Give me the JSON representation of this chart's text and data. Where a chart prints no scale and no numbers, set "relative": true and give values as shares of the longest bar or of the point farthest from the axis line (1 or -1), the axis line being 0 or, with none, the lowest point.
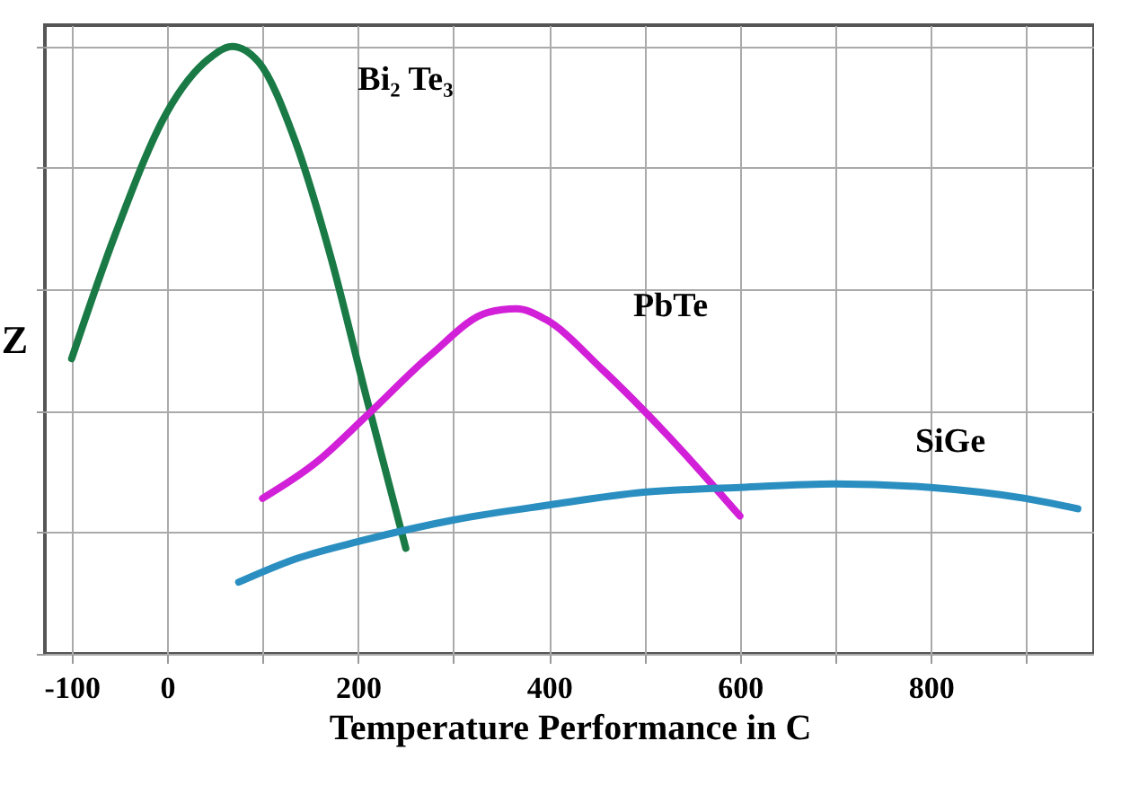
{
  "chart_data": {
    "type": "line",
    "xlabel": "Temperature Performance in C",
    "ylabel": "Z",
    "relative": true,
    "grid": true,
    "xlim": [
      -128,
      971
    ],
    "xticks": [
      -100,
      0,
      {
        "value": 100,
        "label": null
      },
      200,
      {
        "value": 300,
        "label": null
      },
      400,
      {
        "value": 500,
        "label": null
      },
      600,
      {
        "value": 700,
        "label": null
      },
      800,
      {
        "value": 900,
        "label": null
      }
    ],
    "series": [
      {
        "name": "Bi₂ Te₃",
        "color": "#1a7a45",
        "x": [
          -100,
          -54,
          0,
          44,
          68,
          96,
          134,
          171,
          209,
          250
        ],
        "values": [
          0.486,
          0.692,
          0.892,
          0.98,
          1,
          0.974,
          0.845,
          0.656,
          0.421,
          0.174
        ]
      },
      {
        "name": "PbTe",
        "color": "#d21fd8",
        "x": [
          100,
          156,
          209,
          276,
          336,
          366,
          396,
          456,
          523,
          600
        ],
        "values": [
          0.256,
          0.315,
          0.392,
          0.492,
          0.562,
          0.568,
          0.551,
          0.468,
          0.362,
          0.227
        ]
      },
      {
        "name": "SiGe",
        "color": "#2a8fc0",
        "x": [
          75,
          134,
          203,
          302,
          400,
          499,
          600,
          699,
          800,
          899,
          954
        ],
        "values": [
          0.118,
          0.156,
          0.186,
          0.221,
          0.245,
          0.266,
          0.274,
          0.28,
          0.274,
          0.256,
          0.239
        ]
      }
    ]
  }
}
